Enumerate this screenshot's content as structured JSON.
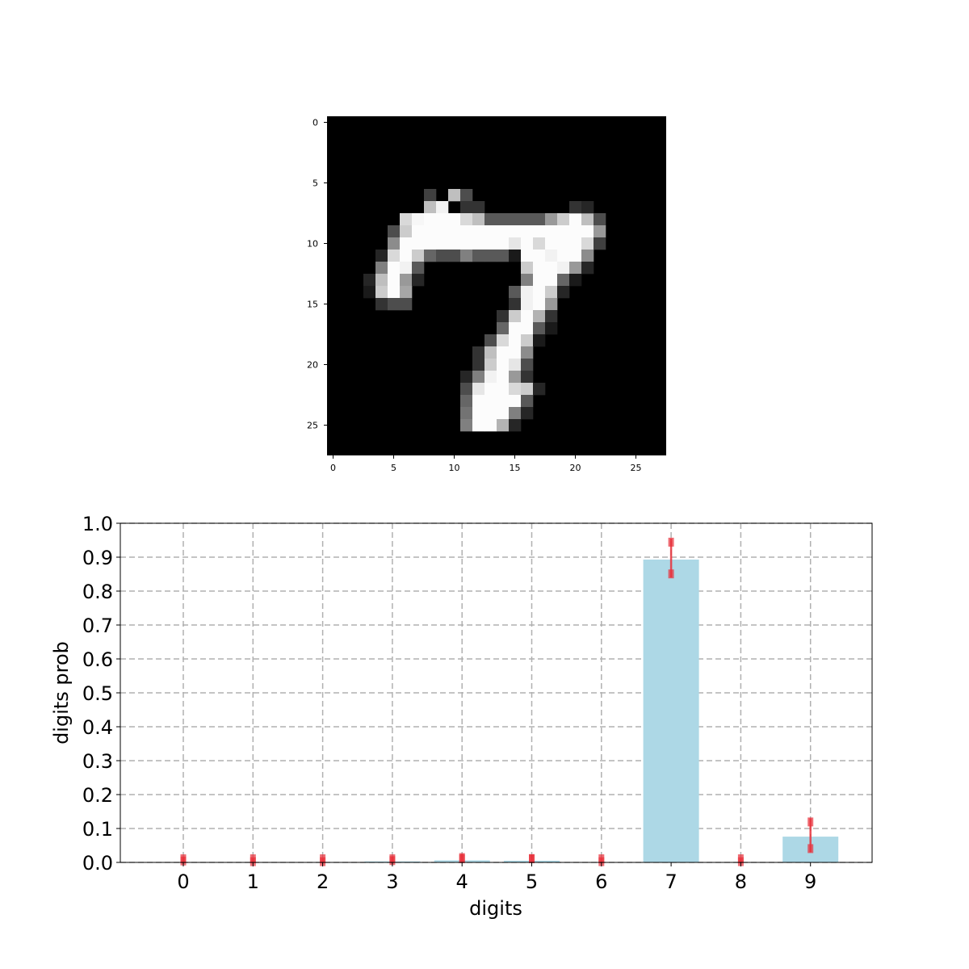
{
  "image_panel": {
    "type": "heatmap",
    "colormap": "gray",
    "size": [
      28,
      28
    ],
    "xticks": [
      "0",
      "5",
      "10",
      "15",
      "20",
      "25"
    ],
    "yticks": [
      "0",
      "5",
      "10",
      "15",
      "20",
      "25"
    ],
    "tick_values": [
      0,
      5,
      10,
      15,
      20,
      25
    ],
    "pixels": [
      [
        6,
        8,
        0.25
      ],
      [
        7,
        8,
        0.75
      ],
      [
        7,
        9,
        0.95
      ],
      [
        6,
        10,
        0.75
      ],
      [
        6,
        11,
        0.3
      ],
      [
        7,
        11,
        0.2
      ],
      [
        8,
        11,
        0.35
      ],
      [
        7,
        12,
        0.2
      ],
      [
        8,
        6,
        0.85
      ],
      [
        8,
        7,
        0.97
      ],
      [
        8,
        8,
        0.99
      ],
      [
        8,
        9,
        0.99
      ],
      [
        8,
        10,
        0.99
      ],
      [
        8,
        11,
        0.85
      ],
      [
        8,
        12,
        0.75
      ],
      [
        8,
        13,
        0.35
      ],
      [
        8,
        14,
        0.35
      ],
      [
        8,
        15,
        0.35
      ],
      [
        8,
        16,
        0.35
      ],
      [
        8,
        17,
        0.35
      ],
      [
        8,
        18,
        0.6
      ],
      [
        8,
        19,
        0.8
      ],
      [
        8,
        20,
        0.99
      ],
      [
        8,
        21,
        0.75
      ],
      [
        8,
        22,
        0.3
      ],
      [
        7,
        20,
        0.2
      ],
      [
        7,
        21,
        0.15
      ],
      [
        9,
        5,
        0.3
      ],
      [
        9,
        6,
        0.8
      ],
      [
        9,
        7,
        0.99
      ],
      [
        9,
        8,
        0.99
      ],
      [
        9,
        9,
        0.99
      ],
      [
        9,
        10,
        0.99
      ],
      [
        9,
        11,
        0.99
      ],
      [
        9,
        12,
        0.99
      ],
      [
        9,
        13,
        0.99
      ],
      [
        9,
        14,
        0.99
      ],
      [
        9,
        15,
        0.99
      ],
      [
        9,
        16,
        0.99
      ],
      [
        9,
        17,
        0.99
      ],
      [
        9,
        18,
        0.99
      ],
      [
        9,
        19,
        0.99
      ],
      [
        9,
        20,
        0.99
      ],
      [
        9,
        21,
        0.99
      ],
      [
        9,
        22,
        0.6
      ],
      [
        10,
        5,
        0.55
      ],
      [
        10,
        6,
        0.99
      ],
      [
        10,
        7,
        0.99
      ],
      [
        10,
        8,
        0.99
      ],
      [
        10,
        9,
        0.99
      ],
      [
        10,
        10,
        0.99
      ],
      [
        10,
        11,
        0.99
      ],
      [
        10,
        12,
        0.99
      ],
      [
        10,
        13,
        0.99
      ],
      [
        10,
        14,
        0.99
      ],
      [
        10,
        15,
        0.9
      ],
      [
        10,
        16,
        0.99
      ],
      [
        10,
        17,
        0.85
      ],
      [
        10,
        18,
        0.99
      ],
      [
        10,
        19,
        0.99
      ],
      [
        10,
        20,
        0.99
      ],
      [
        10,
        21,
        0.85
      ],
      [
        10,
        22,
        0.25
      ],
      [
        11,
        4,
        0.15
      ],
      [
        11,
        5,
        0.85
      ],
      [
        11,
        6,
        0.99
      ],
      [
        11,
        7,
        0.8
      ],
      [
        11,
        8,
        0.4
      ],
      [
        11,
        9,
        0.3
      ],
      [
        11,
        10,
        0.3
      ],
      [
        11,
        11,
        0.5
      ],
      [
        11,
        12,
        0.35
      ],
      [
        11,
        13,
        0.35
      ],
      [
        11,
        14,
        0.35
      ],
      [
        11,
        15,
        0.1
      ],
      [
        11,
        16,
        0.99
      ],
      [
        11,
        17,
        0.99
      ],
      [
        11,
        18,
        0.95
      ],
      [
        11,
        19,
        0.99
      ],
      [
        11,
        20,
        0.99
      ],
      [
        11,
        21,
        0.55
      ],
      [
        12,
        4,
        0.5
      ],
      [
        12,
        5,
        0.99
      ],
      [
        12,
        6,
        0.95
      ],
      [
        12,
        7,
        0.35
      ],
      [
        12,
        16,
        0.8
      ],
      [
        12,
        17,
        0.99
      ],
      [
        12,
        18,
        0.99
      ],
      [
        12,
        19,
        0.95
      ],
      [
        12,
        20,
        0.6
      ],
      [
        12,
        21,
        0.15
      ],
      [
        13,
        3,
        0.15
      ],
      [
        13,
        4,
        0.75
      ],
      [
        13,
        5,
        0.99
      ],
      [
        13,
        6,
        0.6
      ],
      [
        13,
        7,
        0.15
      ],
      [
        13,
        16,
        0.5
      ],
      [
        13,
        17,
        0.99
      ],
      [
        13,
        18,
        0.99
      ],
      [
        13,
        19,
        0.4
      ],
      [
        13,
        20,
        0.1
      ],
      [
        14,
        3,
        0.1
      ],
      [
        14,
        4,
        0.8
      ],
      [
        14,
        5,
        0.99
      ],
      [
        14,
        6,
        0.65
      ],
      [
        14,
        15,
        0.35
      ],
      [
        14,
        16,
        0.95
      ],
      [
        14,
        17,
        0.99
      ],
      [
        14,
        18,
        0.8
      ],
      [
        14,
        19,
        0.15
      ],
      [
        15,
        4,
        0.2
      ],
      [
        15,
        5,
        0.3
      ],
      [
        15,
        6,
        0.3
      ],
      [
        15,
        15,
        0.2
      ],
      [
        15,
        16,
        0.95
      ],
      [
        15,
        17,
        0.99
      ],
      [
        15,
        18,
        0.6
      ],
      [
        16,
        14,
        0.2
      ],
      [
        16,
        15,
        0.8
      ],
      [
        16,
        16,
        0.99
      ],
      [
        16,
        17,
        0.7
      ],
      [
        16,
        18,
        0.2
      ],
      [
        17,
        14,
        0.4
      ],
      [
        17,
        15,
        0.99
      ],
      [
        17,
        16,
        0.99
      ],
      [
        17,
        17,
        0.35
      ],
      [
        17,
        18,
        0.1
      ],
      [
        18,
        13,
        0.3
      ],
      [
        18,
        14,
        0.85
      ],
      [
        18,
        15,
        0.99
      ],
      [
        18,
        16,
        0.8
      ],
      [
        18,
        17,
        0.1
      ],
      [
        19,
        12,
        0.2
      ],
      [
        19,
        13,
        0.75
      ],
      [
        19,
        14,
        0.99
      ],
      [
        19,
        15,
        0.99
      ],
      [
        19,
        16,
        0.55
      ],
      [
        20,
        12,
        0.2
      ],
      [
        20,
        13,
        0.8
      ],
      [
        20,
        14,
        0.99
      ],
      [
        20,
        15,
        0.9
      ],
      [
        20,
        16,
        0.3
      ],
      [
        21,
        11,
        0.15
      ],
      [
        21,
        12,
        0.5
      ],
      [
        21,
        13,
        0.95
      ],
      [
        21,
        14,
        0.99
      ],
      [
        21,
        15,
        0.6
      ],
      [
        21,
        16,
        0.2
      ],
      [
        22,
        11,
        0.3
      ],
      [
        22,
        12,
        0.9
      ],
      [
        22,
        13,
        0.99
      ],
      [
        22,
        14,
        0.99
      ],
      [
        22,
        15,
        0.85
      ],
      [
        22,
        16,
        0.8
      ],
      [
        22,
        17,
        0.15
      ],
      [
        23,
        11,
        0.4
      ],
      [
        23,
        12,
        0.99
      ],
      [
        23,
        13,
        0.99
      ],
      [
        23,
        14,
        0.99
      ],
      [
        23,
        15,
        0.99
      ],
      [
        23,
        16,
        0.35
      ],
      [
        24,
        11,
        0.45
      ],
      [
        24,
        12,
        0.99
      ],
      [
        24,
        13,
        0.99
      ],
      [
        24,
        14,
        0.99
      ],
      [
        24,
        15,
        0.5
      ],
      [
        24,
        16,
        0.15
      ],
      [
        25,
        11,
        0.5
      ],
      [
        25,
        12,
        0.99
      ],
      [
        25,
        13,
        0.99
      ],
      [
        25,
        14,
        0.7
      ],
      [
        25,
        15,
        0.15
      ]
    ]
  },
  "chart_data": {
    "type": "bar",
    "xlabel": "digits",
    "ylabel": "digits prob",
    "categories": [
      "0",
      "1",
      "2",
      "3",
      "4",
      "5",
      "6",
      "7",
      "8",
      "9"
    ],
    "values": [
      0.001,
      0.001,
      0.001,
      0.003,
      0.006,
      0.005,
      0.001,
      0.893,
      0.001,
      0.076
    ],
    "error_bars": [
      [
        0.0,
        0.015
      ],
      [
        0.0,
        0.013
      ],
      [
        0.0,
        0.013
      ],
      [
        0.0,
        0.016
      ],
      [
        0.0,
        0.025
      ],
      [
        0.0,
        0.022
      ],
      [
        0.0,
        0.013
      ],
      [
        0.84,
        0.955
      ],
      [
        0.0,
        0.013
      ],
      [
        0.03,
        0.13
      ]
    ],
    "ylim": [
      0.0,
      1.0
    ],
    "yticks": [
      "0.0",
      "0.1",
      "0.2",
      "0.3",
      "0.4",
      "0.5",
      "0.6",
      "0.7",
      "0.8",
      "0.9",
      "1.0"
    ],
    "ytick_values": [
      0.0,
      0.1,
      0.2,
      0.3,
      0.4,
      0.5,
      0.6,
      0.7,
      0.8,
      0.9,
      1.0
    ],
    "grid": true,
    "bar_color": "#add8e6",
    "error_color": "#e8303a"
  }
}
